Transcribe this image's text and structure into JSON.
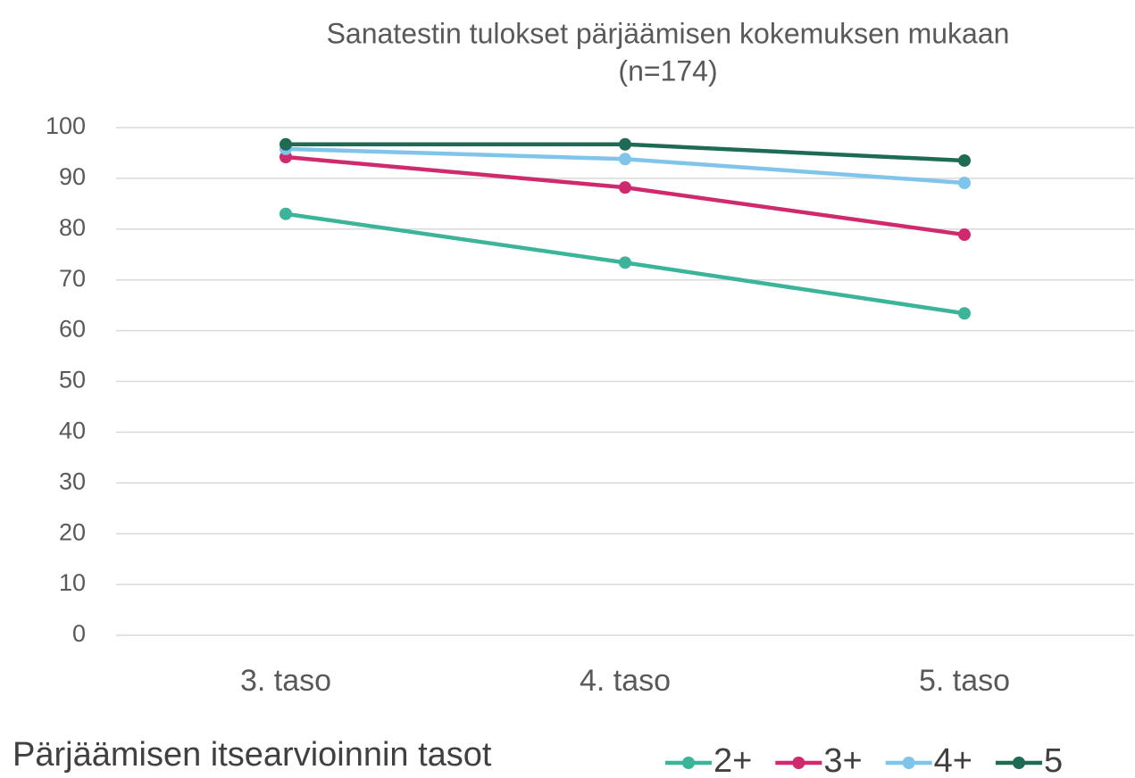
{
  "chart_data": {
    "type": "line",
    "title": [
      "Sanatestin tulokset pärjäämisen kokemuksen mukaan",
      "(n=174)"
    ],
    "legend_title": "Pärjäämisen itsearvioinnin tasot",
    "categories": [
      "3. taso",
      "4. taso",
      "5. taso"
    ],
    "series": [
      {
        "name": "2+",
        "color": "#3cb49a",
        "values": [
          83.0,
          73.4,
          63.4
        ]
      },
      {
        "name": "3+",
        "color": "#d02a6e",
        "values": [
          94.2,
          88.2,
          78.9
        ]
      },
      {
        "name": "4+",
        "color": "#7fc4ea",
        "values": [
          95.8,
          93.8,
          89.1
        ]
      },
      {
        "name": "5",
        "color": "#1e6b55",
        "values": [
          96.7,
          96.7,
          93.5
        ]
      }
    ],
    "ylim": [
      0,
      100
    ],
    "yticks": [
      0,
      10,
      20,
      30,
      40,
      50,
      60,
      70,
      80,
      90,
      100
    ],
    "grid": true,
    "legend": "bottom"
  }
}
